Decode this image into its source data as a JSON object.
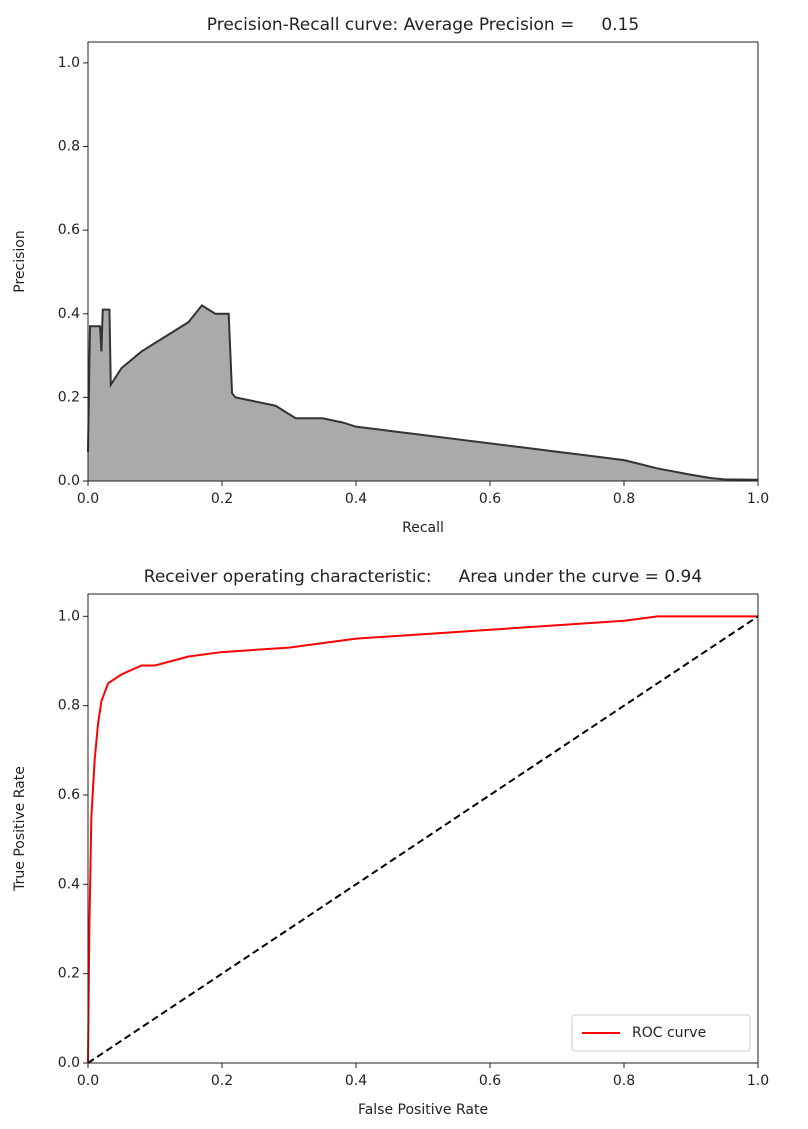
{
  "chart_data": [
    {
      "type": "area",
      "title": "Precision-Recall curve: Average Precision =     0.15",
      "xlabel": "Recall",
      "ylabel": "Precision",
      "series": [
        {
          "color": "#333333",
          "fill_color": "#aaaaaa",
          "x": [
            0,
            0.003,
            0.018,
            0.02,
            0.022,
            0.032,
            0.034,
            0.05,
            0.08,
            0.1,
            0.13,
            0.15,
            0.17,
            0.19,
            0.21,
            0.215,
            0.22,
            0.25,
            0.28,
            0.3,
            0.31,
            0.35,
            0.38,
            0.4,
            0.45,
            0.5,
            0.55,
            0.6,
            0.65,
            0.7,
            0.75,
            0.8,
            0.85,
            0.9,
            0.93,
            0.95,
            1.0
          ],
          "values": [
            0.07,
            0.37,
            0.37,
            0.31,
            0.41,
            0.41,
            0.23,
            0.27,
            0.31,
            0.33,
            0.36,
            0.38,
            0.42,
            0.4,
            0.4,
            0.21,
            0.2,
            0.19,
            0.18,
            0.16,
            0.15,
            0.15,
            0.14,
            0.13,
            0.12,
            0.11,
            0.1,
            0.09,
            0.08,
            0.07,
            0.06,
            0.05,
            0.03,
            0.015,
            0.007,
            0.004,
            0.003
          ]
        }
      ],
      "xlim": [
        0,
        1
      ],
      "ylim": [
        0,
        1.05
      ],
      "xticks": [
        {
          "value": 0,
          "label": "0.0"
        },
        0.2,
        0.4,
        0.6,
        0.8,
        {
          "value": 1,
          "label": "1.0"
        }
      ],
      "yticks": [
        {
          "value": 0,
          "label": "0.0"
        },
        0.2,
        0.4,
        0.6,
        0.8,
        {
          "value": 1,
          "label": "1.0"
        }
      ]
    },
    {
      "type": "line",
      "title": "Receiver operating characteristic:     Area under the curve = 0.94",
      "xlabel": "False Positive Rate",
      "ylabel": "True Positive Rate",
      "series": [
        {
          "name": "ROC curve",
          "color": "#ff0000",
          "x": [
            0,
            0.002,
            0.005,
            0.01,
            0.015,
            0.02,
            0.03,
            0.05,
            0.08,
            0.1,
            0.15,
            0.2,
            0.3,
            0.35,
            0.4,
            0.5,
            0.6,
            0.7,
            0.8,
            0.85,
            0.9,
            1.0
          ],
          "values": [
            0,
            0.3,
            0.55,
            0.68,
            0.76,
            0.81,
            0.85,
            0.87,
            0.89,
            0.89,
            0.91,
            0.92,
            0.93,
            0.94,
            0.95,
            0.96,
            0.97,
            0.98,
            0.99,
            1.0,
            1.0,
            1.0
          ]
        },
        {
          "color": "#000000",
          "dashed": true,
          "x": [
            0,
            1
          ],
          "values": [
            0,
            1
          ]
        }
      ],
      "legend": "lower right",
      "xlim": [
        0,
        1
      ],
      "ylim": [
        0,
        1.05
      ],
      "xticks": [
        {
          "value": 0,
          "label": "0.0"
        },
        0.2,
        0.4,
        0.6,
        0.8,
        {
          "value": 1,
          "label": "1.0"
        }
      ],
      "yticks": [
        {
          "value": 0,
          "label": "0.0"
        },
        0.2,
        0.4,
        0.6,
        0.8,
        {
          "value": 1,
          "label": "1.0"
        }
      ]
    }
  ]
}
